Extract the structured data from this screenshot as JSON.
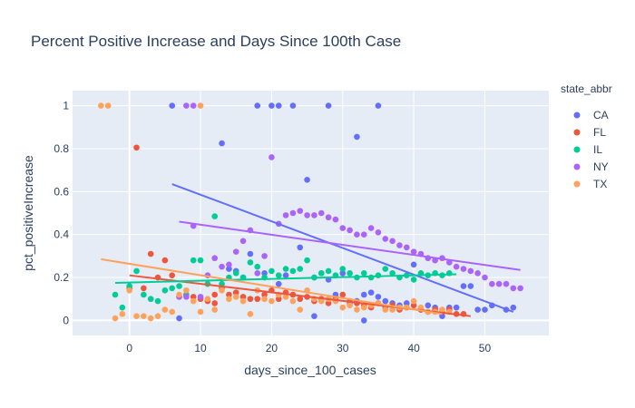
{
  "chart_data": {
    "type": "scatter",
    "title": "Percent Positive Increase and Days Since 100th Case",
    "xlabel": "days_since_100_cases",
    "ylabel": "pct_positiveIncrease",
    "xlim": [
      -8,
      59
    ],
    "ylim": [
      -0.07,
      1.07
    ],
    "x_ticks": [
      0,
      10,
      20,
      30,
      40,
      50
    ],
    "y_ticks": [
      0,
      0.2,
      0.4,
      0.6,
      0.8,
      1
    ],
    "x_tick_labels": [
      "0",
      "10",
      "20",
      "30",
      "40",
      "50"
    ],
    "y_tick_labels": [
      "0",
      "0.2",
      "0.4",
      "0.6",
      "0.8",
      "1"
    ],
    "grid": true,
    "legend_title": "state_abbr",
    "legend_position": "right",
    "series": [
      {
        "name": "CA",
        "color": "#636efa",
        "points": [
          [
            6,
            1
          ],
          [
            13,
            0.825
          ],
          [
            18,
            1
          ],
          [
            20,
            1
          ],
          [
            21,
            1
          ],
          [
            23,
            1
          ],
          [
            28,
            1
          ],
          [
            32,
            0.855
          ],
          [
            35,
            1
          ],
          [
            14,
            0.24
          ],
          [
            15,
            0.23
          ],
          [
            16,
            0.2
          ],
          [
            17,
            0.31
          ],
          [
            19,
            0.22
          ],
          [
            21,
            0.17
          ],
          [
            22,
            0.21
          ],
          [
            24,
            0.34
          ],
          [
            25,
            0.655
          ],
          [
            26,
            0.2
          ],
          [
            27,
            0.22
          ],
          [
            28,
            0.19
          ],
          [
            29,
            0.12
          ],
          [
            30,
            0.22
          ],
          [
            31,
            0.08
          ],
          [
            32,
            0.09
          ],
          [
            33,
            0.12
          ],
          [
            34,
            0.13
          ],
          [
            35,
            0.11
          ],
          [
            36,
            0.09
          ],
          [
            37,
            0.08
          ],
          [
            38,
            0.07
          ],
          [
            39,
            0.08
          ],
          [
            40,
            0.26
          ],
          [
            41,
            0.05
          ],
          [
            42,
            0.07
          ],
          [
            43,
            0.06
          ],
          [
            44,
            0.02
          ],
          [
            45,
            0.06
          ],
          [
            46,
            0.06
          ],
          [
            47,
            0.16
          ],
          [
            48,
            0.16
          ],
          [
            49,
            0.05
          ],
          [
            50,
            0.05
          ],
          [
            51,
            0.07
          ],
          [
            53,
            0.05
          ],
          [
            54,
            0.06
          ],
          [
            7,
            0.01
          ],
          [
            26,
            0.02
          ],
          [
            33,
            0.0
          ]
        ],
        "fit": [
          [
            6,
            0.635
          ],
          [
            54,
            0.04
          ]
        ]
      },
      {
        "name": "FL",
        "color": "#ef553b",
        "points": [
          [
            1,
            0.805
          ],
          [
            3,
            0.31
          ],
          [
            4,
            0.2
          ],
          [
            5,
            0.28
          ],
          [
            6,
            0.21
          ],
          [
            8,
            0.12
          ],
          [
            9,
            0.11
          ],
          [
            10,
            0.1
          ],
          [
            11,
            0.09
          ],
          [
            12,
            0.12
          ],
          [
            13,
            0.15
          ],
          [
            14,
            0.12
          ],
          [
            15,
            0.13
          ],
          [
            16,
            0.11
          ],
          [
            17,
            0.1
          ],
          [
            18,
            0.1
          ],
          [
            19,
            0.12
          ],
          [
            20,
            0.14
          ],
          [
            21,
            0.1
          ],
          [
            22,
            0.13
          ],
          [
            23,
            0.12
          ],
          [
            24,
            0.1
          ],
          [
            25,
            0.11
          ],
          [
            26,
            0.09
          ],
          [
            27,
            0.1
          ],
          [
            28,
            0.08
          ],
          [
            29,
            0.1
          ],
          [
            30,
            0.12
          ],
          [
            31,
            0.09
          ],
          [
            32,
            0.08
          ],
          [
            33,
            0.07
          ],
          [
            34,
            0.06
          ],
          [
            35,
            0.08
          ],
          [
            36,
            0.06
          ],
          [
            37,
            0.07
          ],
          [
            38,
            0.05
          ],
          [
            39,
            0.06
          ],
          [
            40,
            0.07
          ],
          [
            41,
            0.05
          ],
          [
            42,
            0.04
          ],
          [
            43,
            0.05
          ],
          [
            44,
            0.04
          ],
          [
            45,
            0.05
          ],
          [
            46,
            0.03
          ],
          [
            47,
            0.03
          ],
          [
            2,
            0.15
          ],
          [
            7,
            0.11
          ],
          [
            12,
            0.08
          ],
          [
            0,
            0.15
          ]
        ],
        "fit": [
          [
            0,
            0.21
          ],
          [
            48,
            0.02
          ]
        ]
      },
      {
        "name": "IL",
        "color": "#00cc96",
        "points": [
          [
            -2,
            0.12
          ],
          [
            -1,
            0.06
          ],
          [
            0,
            0.16
          ],
          [
            1,
            0.23
          ],
          [
            2,
            0.12
          ],
          [
            3,
            0.1
          ],
          [
            4,
            0.09
          ],
          [
            5,
            0.14
          ],
          [
            6,
            0.15
          ],
          [
            7,
            0.16
          ],
          [
            8,
            0.12
          ],
          [
            9,
            0.28
          ],
          [
            10,
            0.28
          ],
          [
            11,
            0.17
          ],
          [
            12,
            0.485
          ],
          [
            13,
            0.17
          ],
          [
            14,
            0.2
          ],
          [
            15,
            0.22
          ],
          [
            16,
            0.2
          ],
          [
            17,
            0.27
          ],
          [
            18,
            0.25
          ],
          [
            19,
            0.2
          ],
          [
            20,
            0.23
          ],
          [
            21,
            0.21
          ],
          [
            22,
            0.24
          ],
          [
            23,
            0.23
          ],
          [
            24,
            0.24
          ],
          [
            25,
            0.28
          ],
          [
            26,
            0.2
          ],
          [
            27,
            0.22
          ],
          [
            28,
            0.23
          ],
          [
            29,
            0.21
          ],
          [
            30,
            0.24
          ],
          [
            31,
            0.22
          ],
          [
            32,
            0.2
          ],
          [
            33,
            0.22
          ],
          [
            34,
            0.2
          ],
          [
            35,
            0.21
          ],
          [
            36,
            0.24
          ],
          [
            37,
            0.22
          ],
          [
            38,
            0.2
          ],
          [
            39,
            0.21
          ],
          [
            40,
            0.19
          ],
          [
            41,
            0.22
          ],
          [
            42,
            0.21
          ],
          [
            43,
            0.22
          ],
          [
            44,
            0.21
          ],
          [
            45,
            0.22
          ]
        ],
        "fit": [
          [
            -2,
            0.175
          ],
          [
            46,
            0.215
          ]
        ]
      },
      {
        "name": "NY",
        "color": "#ab63fa",
        "points": [
          [
            8,
            1
          ],
          [
            9,
            1
          ],
          [
            7,
            0.11
          ],
          [
            8,
            0.11
          ],
          [
            9,
            0.44
          ],
          [
            10,
            0.11
          ],
          [
            11,
            0.21
          ],
          [
            12,
            0.29
          ],
          [
            13,
            0.25
          ],
          [
            14,
            0.26
          ],
          [
            15,
            0.32
          ],
          [
            16,
            0.37
          ],
          [
            17,
            0.42
          ],
          [
            18,
            0.22
          ],
          [
            19,
            0.3
          ],
          [
            20,
            0.76
          ],
          [
            21,
            0.45
          ],
          [
            22,
            0.49
          ],
          [
            23,
            0.5
          ],
          [
            24,
            0.51
          ],
          [
            25,
            0.49
          ],
          [
            26,
            0.49
          ],
          [
            27,
            0.5
          ],
          [
            28,
            0.48
          ],
          [
            29,
            0.47
          ],
          [
            30,
            0.43
          ],
          [
            31,
            0.42
          ],
          [
            32,
            0.4
          ],
          [
            33,
            0.4
          ],
          [
            34,
            0.43
          ],
          [
            35,
            0.41
          ],
          [
            36,
            0.38
          ],
          [
            37,
            0.37
          ],
          [
            38,
            0.35
          ],
          [
            39,
            0.34
          ],
          [
            40,
            0.32
          ],
          [
            41,
            0.31
          ],
          [
            42,
            0.29
          ],
          [
            43,
            0.28
          ],
          [
            44,
            0.29
          ],
          [
            45,
            0.27
          ],
          [
            46,
            0.25
          ],
          [
            47,
            0.24
          ],
          [
            48,
            0.23
          ],
          [
            49,
            0.22
          ],
          [
            50,
            0.2
          ],
          [
            51,
            0.17
          ],
          [
            52,
            0.17
          ],
          [
            53,
            0.17
          ],
          [
            54,
            0.15
          ],
          [
            55,
            0.15
          ]
        ],
        "fit": [
          [
            7,
            0.46
          ],
          [
            55,
            0.235
          ]
        ]
      },
      {
        "name": "TX",
        "color": "#fea15b",
        "points": [
          [
            -4,
            1
          ],
          [
            -3,
            1
          ],
          [
            10,
            1
          ],
          [
            -2,
            0.01
          ],
          [
            -1,
            0.03
          ],
          [
            0,
            0.14
          ],
          [
            1,
            0.02
          ],
          [
            2,
            0.02
          ],
          [
            3,
            0.01
          ],
          [
            4,
            0.02
          ],
          [
            5,
            0.05
          ],
          [
            6,
            0.04
          ],
          [
            7,
            0.12
          ],
          [
            8,
            0.14
          ],
          [
            9,
            0.09
          ],
          [
            10,
            0.04
          ],
          [
            11,
            0.1
          ],
          [
            12,
            0.05
          ],
          [
            13,
            0.14
          ],
          [
            14,
            0.1
          ],
          [
            15,
            0.11
          ],
          [
            16,
            0.09
          ],
          [
            17,
            0.03
          ],
          [
            18,
            0.14
          ],
          [
            19,
            0.1
          ],
          [
            20,
            0.09
          ],
          [
            21,
            0.12
          ],
          [
            22,
            0.11
          ],
          [
            23,
            0.09
          ],
          [
            24,
            0.05
          ],
          [
            25,
            0.14
          ],
          [
            26,
            0.1
          ],
          [
            27,
            0.09
          ],
          [
            28,
            0.1
          ],
          [
            29,
            0.09
          ],
          [
            30,
            0.06
          ],
          [
            31,
            0.07
          ],
          [
            32,
            0.05
          ],
          [
            33,
            0.06
          ],
          [
            34,
            0.07
          ],
          [
            35,
            0.08
          ],
          [
            36,
            0.05
          ],
          [
            37,
            0.05
          ],
          [
            38,
            0.06
          ],
          [
            39,
            0.06
          ],
          [
            40,
            0.09
          ],
          [
            41,
            0.06
          ],
          [
            42,
            0.04
          ],
          [
            43,
            0.04
          ],
          [
            44,
            0.05
          ],
          [
            45,
            0.04
          ]
        ],
        "fit": [
          [
            -4,
            0.285
          ],
          [
            44,
            0.03
          ]
        ]
      }
    ]
  }
}
